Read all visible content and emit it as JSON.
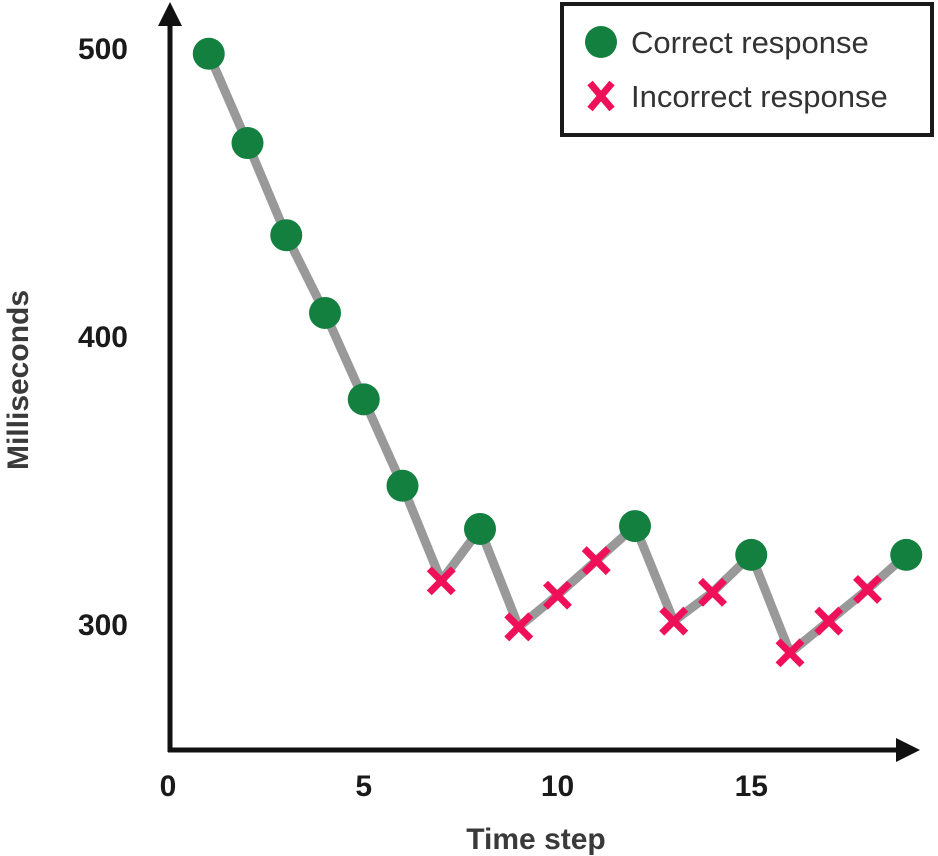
{
  "chart_data": {
    "type": "line",
    "title": "",
    "xlabel": "Time step",
    "ylabel": "Milliseconds",
    "xlim": [
      0,
      19
    ],
    "ylim": [
      253,
      508
    ],
    "xticks": [
      0,
      5,
      10,
      15
    ],
    "yticks": [
      300,
      400,
      500
    ],
    "grid": false,
    "legend_position": "top-right",
    "legend": [
      {
        "label": "Correct response",
        "marker": "circle",
        "color": "#138040"
      },
      {
        "label": "Incorrect response",
        "marker": "x",
        "color": "#f0105a"
      }
    ],
    "line_color": "#999999",
    "series": [
      {
        "x": [
          1,
          2,
          3,
          4,
          5,
          6,
          7,
          8,
          9,
          10,
          11,
          12,
          13,
          14,
          15,
          16,
          17,
          18,
          19
        ],
        "y": [
          498,
          467,
          435,
          408,
          378,
          348,
          315,
          333,
          299,
          310,
          322,
          334,
          301,
          311,
          324,
          290,
          301,
          312,
          324
        ],
        "outcome": [
          "correct",
          "correct",
          "correct",
          "correct",
          "correct",
          "correct",
          "incorrect",
          "correct",
          "incorrect",
          "incorrect",
          "incorrect",
          "correct",
          "incorrect",
          "incorrect",
          "correct",
          "incorrect",
          "incorrect",
          "incorrect",
          "correct"
        ]
      }
    ]
  }
}
